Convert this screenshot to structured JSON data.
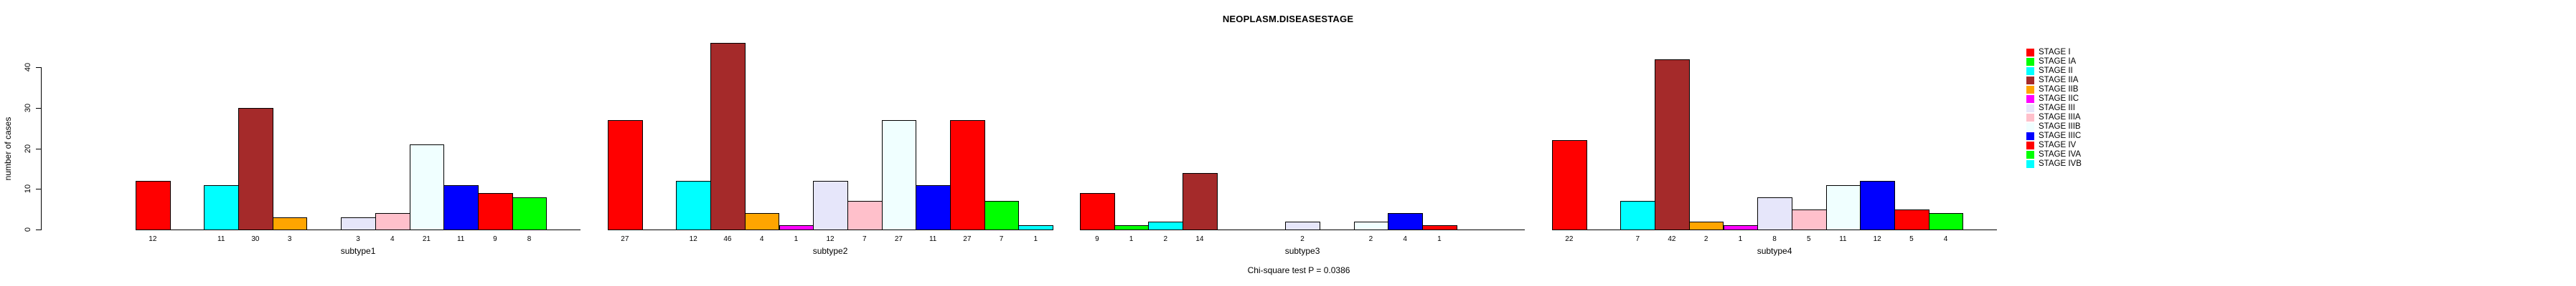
{
  "chart_data": {
    "type": "bar",
    "title": "NEOPLASM.DISEASESTAGE",
    "ylabel": "number of cases",
    "footnote": "Chi-square test P = 0.0386",
    "yticks": [
      0,
      10,
      20,
      30,
      40
    ],
    "ylim": [
      0,
      46
    ],
    "grid": false,
    "legend_position": "right",
    "stages": [
      {
        "label": "STAGE I",
        "color": "#FF0000"
      },
      {
        "label": "STAGE IA",
        "color": "#00FF00"
      },
      {
        "label": "STAGE II",
        "color": "#00FFFF"
      },
      {
        "label": "STAGE IIA",
        "color": "#A52A2A"
      },
      {
        "label": "STAGE IIB",
        "color": "#FFA500"
      },
      {
        "label": "STAGE IIC",
        "color": "#FF00FF"
      },
      {
        "label": "STAGE III",
        "color": "#E6E6FA"
      },
      {
        "label": "STAGE IIIA",
        "color": "#FFC0CB"
      },
      {
        "label": "STAGE IIIB",
        "color": "#F0FFFF"
      },
      {
        "label": "STAGE IIIC",
        "color": "#0000FF"
      },
      {
        "label": "STAGE IV",
        "color": "#FF0000"
      },
      {
        "label": "STAGE IVA",
        "color": "#00FF00"
      },
      {
        "label": "STAGE IVB",
        "color": "#00FFFF"
      }
    ],
    "groups": [
      {
        "label": "subtype1",
        "values": [
          12,
          0,
          11,
          30,
          3,
          0,
          3,
          4,
          21,
          11,
          9,
          8,
          0
        ]
      },
      {
        "label": "subtype2",
        "values": [
          27,
          0,
          12,
          46,
          4,
          1,
          12,
          7,
          27,
          11,
          27,
          7,
          1
        ]
      },
      {
        "label": "subtype3",
        "values": [
          9,
          1,
          2,
          14,
          0,
          0,
          2,
          0,
          2,
          4,
          1,
          0,
          0
        ]
      },
      {
        "label": "subtype4",
        "values": [
          22,
          0,
          7,
          42,
          2,
          1,
          8,
          5,
          11,
          12,
          5,
          4,
          0
        ]
      }
    ]
  }
}
